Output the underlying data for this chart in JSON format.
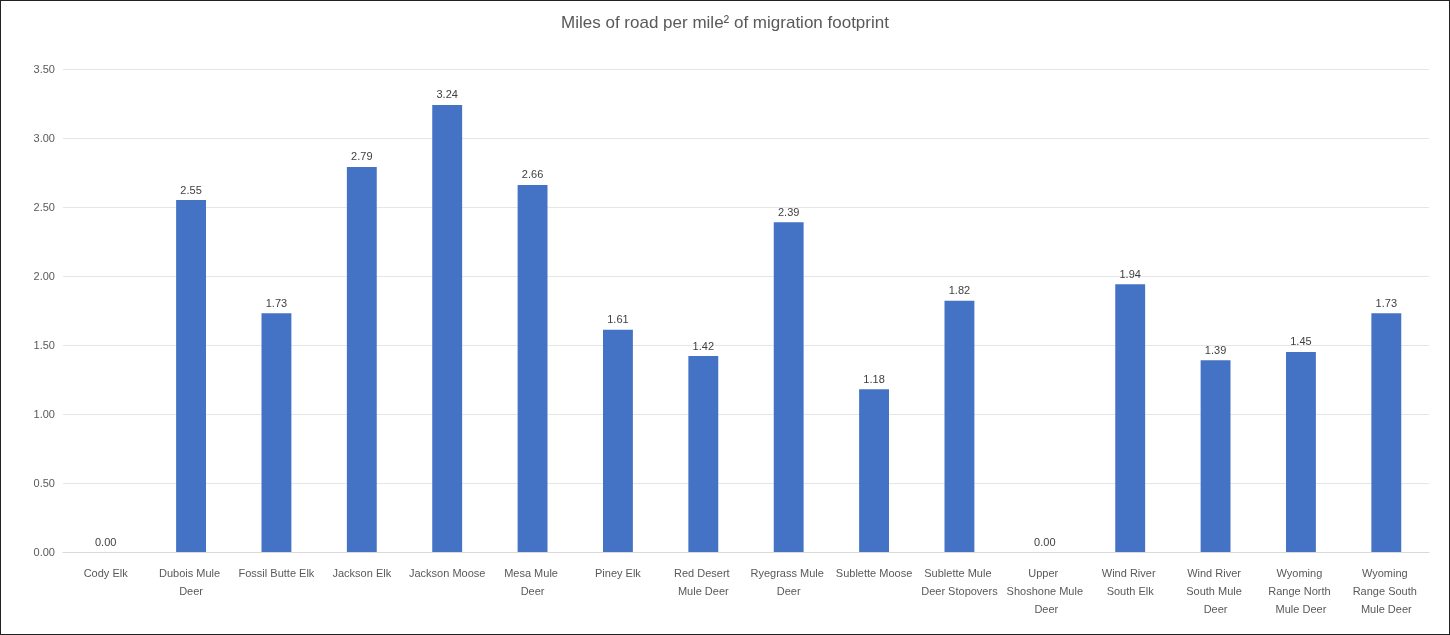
{
  "chart_data": {
    "type": "bar",
    "title": "Miles of road per mile² of migration footprint",
    "categories": [
      "Cody Elk",
      "Dubois Mule Deer",
      "Fossil Butte Elk",
      "Jackson Elk",
      "Jackson Moose",
      "Mesa Mule Deer",
      "Piney Elk",
      "Red Desert Mule Deer",
      "Ryegrass Mule Deer",
      "Sublette Moose",
      "Sublette Mule Deer Stopovers",
      "Upper Shoshone Mule Deer",
      "Wind River South Elk",
      "Wind River South Mule Deer",
      "Wyoming Range North Mule Deer",
      "Wyoming Range South Mule Deer"
    ],
    "values": [
      0,
      2.55,
      1.73,
      2.79,
      3.24,
      2.66,
      1.61,
      1.42,
      2.39,
      1.18,
      1.82,
      0,
      1.94,
      1.39,
      1.45,
      1.73
    ],
    "value_labels": [
      "0.00",
      "2.55",
      "1.73",
      "2.79",
      "3.24",
      "2.66",
      "1.61",
      "1.42",
      "2.39",
      "1.18",
      "1.82",
      "0.00",
      "1.94",
      "1.39",
      "1.45",
      "1.73"
    ],
    "color": "#4472c4",
    "ylim": [
      0,
      3.5
    ],
    "yticks": [
      {
        "value": 0,
        "label": "0.00"
      },
      {
        "value": 0.5,
        "label": "0.50"
      },
      {
        "value": 1,
        "label": "1.00"
      },
      {
        "value": 1.5,
        "label": "1.50"
      },
      {
        "value": 2,
        "label": "2.00"
      },
      {
        "value": 2.5,
        "label": "2.50"
      },
      {
        "value": 3,
        "label": "3.00"
      },
      {
        "value": 3.5,
        "label": "3.50"
      }
    ],
    "grid": "y"
  }
}
